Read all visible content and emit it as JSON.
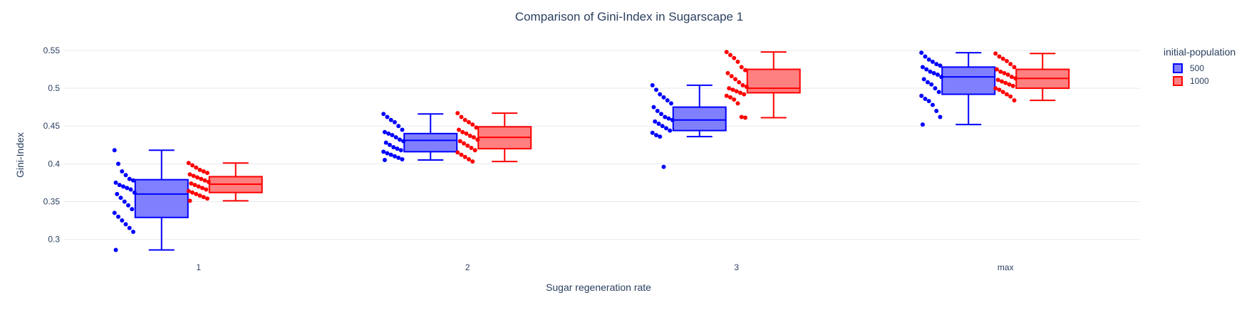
{
  "chart_data": {
    "type": "box",
    "title": "Comparison of Gini-Index in Sugarscape 1",
    "xlabel": "Sugar regeneration rate",
    "ylabel": "Gini-Index",
    "categories": [
      "1",
      "2",
      "3",
      "max"
    ],
    "ylim": [
      0.278,
      0.565
    ],
    "yticks": [
      0.3,
      0.35,
      0.4,
      0.45,
      0.5,
      0.55
    ],
    "ytick_labels": [
      "0.3",
      "0.35",
      "0.4",
      "0.45",
      "0.5",
      "0.55"
    ],
    "grid": true,
    "legend_title": "initial-population",
    "legend_position": "top-right",
    "series": [
      {
        "name": "500",
        "color": "#0000ff",
        "fill": "#8080ff",
        "boxes": [
          {
            "category": "1",
            "min": 0.286,
            "q1": 0.329,
            "median": 0.36,
            "q3": 0.379,
            "max": 0.418
          },
          {
            "category": "2",
            "min": 0.405,
            "q1": 0.416,
            "median": 0.431,
            "q3": 0.44,
            "max": 0.466
          },
          {
            "category": "3",
            "min": 0.436,
            "q1": 0.444,
            "median": 0.458,
            "q3": 0.475,
            "max": 0.504
          },
          {
            "category": "max",
            "min": 0.452,
            "q1": 0.492,
            "median": 0.515,
            "q3": 0.528,
            "max": 0.547
          }
        ],
        "points": [
          [
            0.418,
            0.4,
            0.39,
            0.385,
            0.38,
            0.378,
            0.375,
            0.372,
            0.37,
            0.368,
            0.366,
            0.362,
            0.36,
            0.355,
            0.35,
            0.345,
            0.34,
            0.335,
            0.33,
            0.325,
            0.32,
            0.315,
            0.31,
            0.286
          ],
          [
            0.466,
            0.462,
            0.458,
            0.455,
            0.45,
            0.445,
            0.442,
            0.44,
            0.438,
            0.435,
            0.432,
            0.43,
            0.428,
            0.425,
            0.422,
            0.42,
            0.418,
            0.416,
            0.414,
            0.412,
            0.41,
            0.408,
            0.406,
            0.405
          ],
          [
            0.504,
            0.498,
            0.492,
            0.488,
            0.484,
            0.48,
            0.475,
            0.47,
            0.466,
            0.462,
            0.46,
            0.458,
            0.456,
            0.453,
            0.45,
            0.447,
            0.444,
            0.441,
            0.438,
            0.436,
            0.396
          ],
          [
            0.547,
            0.542,
            0.538,
            0.535,
            0.532,
            0.53,
            0.528,
            0.525,
            0.522,
            0.52,
            0.518,
            0.515,
            0.512,
            0.508,
            0.505,
            0.5,
            0.495,
            0.49,
            0.486,
            0.483,
            0.478,
            0.47,
            0.462,
            0.452
          ]
        ]
      },
      {
        "name": "1000",
        "color": "#ff0000",
        "fill": "#ff8080",
        "boxes": [
          {
            "category": "1",
            "min": 0.351,
            "q1": 0.362,
            "median": 0.373,
            "q3": 0.383,
            "max": 0.401
          },
          {
            "category": "2",
            "min": 0.403,
            "q1": 0.42,
            "median": 0.435,
            "q3": 0.449,
            "max": 0.467
          },
          {
            "category": "3",
            "min": 0.461,
            "q1": 0.494,
            "median": 0.5,
            "q3": 0.525,
            "max": 0.548
          },
          {
            "category": "max",
            "min": 0.484,
            "q1": 0.5,
            "median": 0.513,
            "q3": 0.525,
            "max": 0.546
          }
        ],
        "points": [
          [
            0.401,
            0.398,
            0.395,
            0.392,
            0.39,
            0.388,
            0.386,
            0.384,
            0.382,
            0.38,
            0.378,
            0.376,
            0.374,
            0.372,
            0.37,
            0.368,
            0.366,
            0.364,
            0.362,
            0.36,
            0.358,
            0.356,
            0.354,
            0.351
          ],
          [
            0.467,
            0.462,
            0.458,
            0.455,
            0.452,
            0.448,
            0.445,
            0.442,
            0.44,
            0.437,
            0.435,
            0.432,
            0.43,
            0.427,
            0.424,
            0.421,
            0.418,
            0.415,
            0.412,
            0.409,
            0.406,
            0.403
          ],
          [
            0.548,
            0.544,
            0.54,
            0.535,
            0.528,
            0.524,
            0.52,
            0.516,
            0.512,
            0.508,
            0.504,
            0.502,
            0.5,
            0.498,
            0.496,
            0.494,
            0.492,
            0.49,
            0.488,
            0.485,
            0.48,
            0.462,
            0.461
          ],
          [
            0.546,
            0.542,
            0.539,
            0.536,
            0.532,
            0.528,
            0.525,
            0.522,
            0.52,
            0.518,
            0.515,
            0.513,
            0.511,
            0.509,
            0.507,
            0.505,
            0.503,
            0.5,
            0.498,
            0.495,
            0.492,
            0.489,
            0.484
          ]
        ]
      }
    ]
  }
}
